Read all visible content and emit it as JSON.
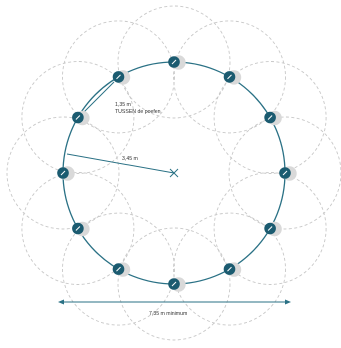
{
  "annotations": {
    "spacing_value": "1,35 m",
    "spacing_note": "TUSSEN de poefen",
    "radius_value": "3,45 m",
    "diameter_value": "7,35 m minimum"
  },
  "colors": {
    "main_circle": "#2a7185",
    "zone_circles": "#c8c8c8",
    "measure_lines": "#2a7185",
    "seat_fill": "#1b5b70",
    "seat_shadow": "#d9d9d9",
    "text": "#333333"
  },
  "seats": {
    "count": 12,
    "icon": "seat-icon"
  }
}
